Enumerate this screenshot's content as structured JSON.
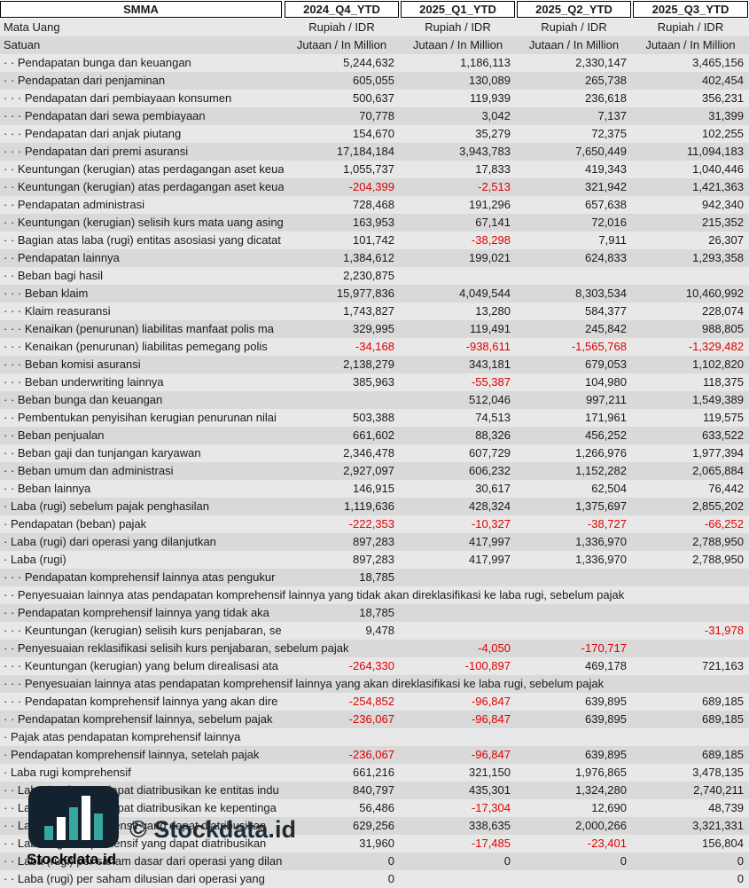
{
  "header": {
    "ticker": "SMMA",
    "columns": [
      "2024_Q4_YTD",
      "2025_Q1_YTD",
      "2025_Q2_YTD",
      "2025_Q3_YTD"
    ]
  },
  "meta": {
    "currency": {
      "label": "Mata Uang",
      "values": [
        "Rupiah / IDR",
        "Rupiah / IDR",
        "Rupiah / IDR",
        "Rupiah / IDR"
      ]
    },
    "unit": {
      "label": "Satuan",
      "values": [
        "Jutaan / In Million",
        "Jutaan / In Million",
        "Jutaan / In Million",
        "Jutaan / In Million"
      ]
    }
  },
  "rows": [
    {
      "label": "· · Pendapatan bunga dan keuangan",
      "values": [
        "5,244,632",
        "1,186,113",
        "2,330,147",
        "3,465,156"
      ]
    },
    {
      "label": "· · Pendapatan dari penjaminan",
      "values": [
        "605,055",
        "130,089",
        "265,738",
        "402,454"
      ]
    },
    {
      "label": "· · · Pendapatan dari pembiayaan konsumen",
      "values": [
        "500,637",
        "119,939",
        "236,618",
        "356,231"
      ]
    },
    {
      "label": "· · · Pendapatan dari sewa pembiayaan",
      "values": [
        "70,778",
        "3,042",
        "7,137",
        "31,399"
      ]
    },
    {
      "label": "· · · Pendapatan dari anjak piutang",
      "values": [
        "154,670",
        "35,279",
        "72,375",
        "102,255"
      ]
    },
    {
      "label": "· · · Pendapatan dari premi asuransi",
      "values": [
        "17,184,184",
        "3,943,783",
        "7,650,449",
        "11,094,183"
      ]
    },
    {
      "label": "· · Keuntungan (kerugian) atas perdagangan aset keuangan",
      "values": [
        "1,055,737",
        "17,833",
        "419,343",
        "1,040,446"
      ]
    },
    {
      "label": "· · Keuntungan (kerugian) atas perdagangan aset keuangan",
      "values": [
        "-204,399",
        "-2,513",
        "321,942",
        "1,421,363"
      ]
    },
    {
      "label": "· · Pendapatan administrasi",
      "values": [
        "728,468",
        "191,296",
        "657,638",
        "942,340"
      ]
    },
    {
      "label": "· · Keuntungan (kerugian) selisih kurs mata uang asing",
      "values": [
        "163,953",
        "67,141",
        "72,016",
        "215,352"
      ]
    },
    {
      "label": "· · Bagian atas laba (rugi) entitas asosiasi yang dicatat",
      "values": [
        "101,742",
        "-38,298",
        "7,911",
        "26,307"
      ]
    },
    {
      "label": "· · Pendapatan lainnya",
      "values": [
        "1,384,612",
        "199,021",
        "624,833",
        "1,293,358"
      ]
    },
    {
      "label": "· · Beban bagi hasil",
      "values": [
        "2,230,875",
        "",
        "",
        ""
      ]
    },
    {
      "label": "· · · Beban klaim",
      "values": [
        "15,977,836",
        "4,049,544",
        "8,303,534",
        "10,460,992"
      ]
    },
    {
      "label": "· · · Klaim reasuransi",
      "values": [
        "1,743,827",
        "13,280",
        "584,377",
        "228,074"
      ]
    },
    {
      "label": "· · · Kenaikan (penurunan) liabilitas manfaat polis ma",
      "values": [
        "329,995",
        "119,491",
        "245,842",
        "988,805"
      ]
    },
    {
      "label": "· · · Kenaikan (penurunan) liabilitas pemegang polis",
      "values": [
        "-34,168",
        "-938,611",
        "-1,565,768",
        "-1,329,482"
      ]
    },
    {
      "label": "· · · Beban komisi asuransi",
      "values": [
        "2,138,279",
        "343,181",
        "679,053",
        "1,102,820"
      ]
    },
    {
      "label": "· · · Beban underwriting lainnya",
      "values": [
        "385,963",
        "-55,387",
        "104,980",
        "118,375"
      ]
    },
    {
      "label": "· · Beban bunga dan keuangan",
      "values": [
        "",
        "512,046",
        "997,211",
        "1,549,389"
      ]
    },
    {
      "label": "· · Pembentukan penyisihan kerugian penurunan nilai",
      "values": [
        "503,388",
        "74,513",
        "171,961",
        "119,575"
      ]
    },
    {
      "label": "· · Beban penjualan",
      "values": [
        "661,602",
        "88,326",
        "456,252",
        "633,522"
      ]
    },
    {
      "label": "· · Beban gaji dan tunjangan karyawan",
      "values": [
        "2,346,478",
        "607,729",
        "1,266,976",
        "1,977,394"
      ]
    },
    {
      "label": "· · Beban umum dan administrasi",
      "values": [
        "2,927,097",
        "606,232",
        "1,152,282",
        "2,065,884"
      ]
    },
    {
      "label": "· · Beban lainnya",
      "values": [
        "146,915",
        "30,617",
        "62,504",
        "76,442"
      ]
    },
    {
      "label": "· Laba (rugi) sebelum pajak penghasilan",
      "values": [
        "1,119,636",
        "428,324",
        "1,375,697",
        "2,855,202"
      ]
    },
    {
      "label": "· Pendapatan (beban) pajak",
      "values": [
        "-222,353",
        "-10,327",
        "-38,727",
        "-66,252"
      ]
    },
    {
      "label": "· Laba (rugi) dari operasi yang dilanjutkan",
      "values": [
        "897,283",
        "417,997",
        "1,336,970",
        "2,788,950"
      ]
    },
    {
      "label": "· Laba (rugi)",
      "values": [
        "897,283",
        "417,997",
        "1,336,970",
        "2,788,950"
      ]
    },
    {
      "label": "· · · Pendapatan komprehensif lainnya atas pengukur",
      "values": [
        "18,785",
        "",
        "",
        ""
      ]
    },
    {
      "label": "· · Penyesuaian lainnya atas pendapatan komprehensif lainnya yang tidak akan direklasifikasi ke laba rugi, sebelum pajak",
      "values": [
        "",
        "",
        "",
        ""
      ],
      "span": true
    },
    {
      "label": "· · Pendapatan komprehensif lainnya yang tidak aka",
      "values": [
        "18,785",
        "",
        "",
        ""
      ]
    },
    {
      "label": "· · · Keuntungan (kerugian) selisih kurs penjabaran, se",
      "values": [
        "9,478",
        "",
        "",
        "-31,978"
      ]
    },
    {
      "label": "· · Penyesuaian reklasifikasi selisih kurs penjabaran, sebelum pajak",
      "values": [
        "",
        "-4,050",
        "-170,717",
        ""
      ],
      "span": true
    },
    {
      "label": "· · · Keuntungan (kerugian) yang belum direalisasi ata",
      "values": [
        "-264,330",
        "-100,897",
        "469,178",
        "721,163"
      ]
    },
    {
      "label": "· · · Penyesuaian lainnya atas pendapatan komprehensif lainnya yang akan direklasifikasi ke laba rugi, sebelum pajak",
      "values": [
        "",
        "",
        "",
        ""
      ],
      "span": true
    },
    {
      "label": "· · · Pendapatan komprehensif lainnya yang akan dire",
      "values": [
        "-254,852",
        "-96,847",
        "639,895",
        "689,185"
      ]
    },
    {
      "label": "· · Pendapatan komprehensif lainnya, sebelum pajak",
      "values": [
        "-236,067",
        "-96,847",
        "639,895",
        "689,185"
      ]
    },
    {
      "label": "· Pajak atas pendapatan komprehensif lainnya",
      "values": [
        "",
        "",
        "",
        ""
      ]
    },
    {
      "label": "· Pendapatan komprehensif lainnya, setelah pajak",
      "values": [
        "-236,067",
        "-96,847",
        "639,895",
        "689,185"
      ]
    },
    {
      "label": "· Laba rugi komprehensif",
      "values": [
        "661,216",
        "321,150",
        "1,976,865",
        "3,478,135"
      ]
    },
    {
      "label": "· · Laba (rugi) yang dapat diatribusikan ke entitas indu",
      "values": [
        "840,797",
        "435,301",
        "1,324,280",
        "2,740,211"
      ]
    },
    {
      "label": "· · Laba (rugi) yang dapat diatribusikan ke kepentinga",
      "values": [
        "56,486",
        "-17,304",
        "12,690",
        "48,739"
      ]
    },
    {
      "label": "· · Laba rugi komprehensif yang dapat diatribusikan",
      "values": [
        "629,256",
        "338,635",
        "2,000,266",
        "3,321,331"
      ]
    },
    {
      "label": "· · Laba rugi komprehensif yang dapat diatribusikan",
      "values": [
        "31,960",
        "-17,485",
        "-23,401",
        "156,804"
      ]
    },
    {
      "label": "· · Laba (rugi) per saham dasar dari operasi yang dilan",
      "values": [
        "0",
        "0",
        "0",
        "0"
      ]
    },
    {
      "label": "· · Laba (rugi) per saham dilusian dari operasi yang",
      "values": [
        "0",
        "",
        "",
        "0"
      ]
    }
  ],
  "watermark": {
    "big": "© Stockdata.id",
    "small": "Stockdata.id"
  },
  "colors": {
    "negative": "#e00000",
    "stripe_light": "#e9e8e8",
    "stripe_dark": "#d9d9d9",
    "logo_bg": "#13222e",
    "logo_teal": "#35a79f",
    "logo_white": "#ffffff"
  }
}
